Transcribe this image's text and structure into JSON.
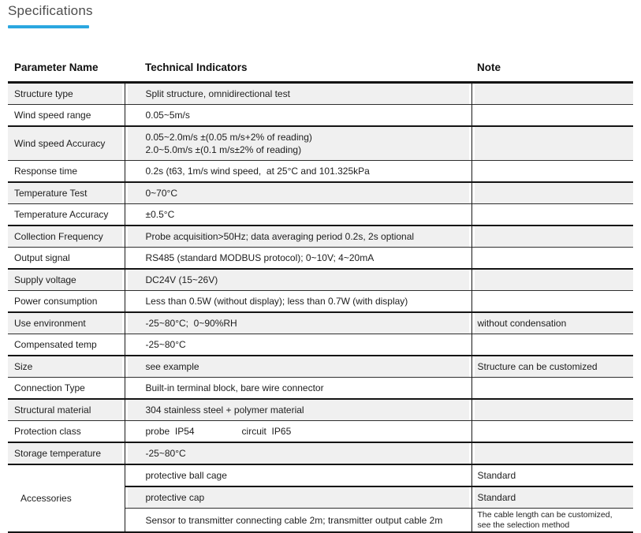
{
  "title": "Specifications",
  "accent_color": "#2BA7E0",
  "table": {
    "headers": [
      "Parameter Name",
      "Technical Indicators",
      "Note"
    ],
    "rows": [
      {
        "param": "Structure type",
        "value": "Split structure, omnidirectional test",
        "note": ""
      },
      {
        "param": "Wind speed range",
        "value": "0.05~5m/s",
        "note": ""
      },
      {
        "param": "Wind speed Accuracy",
        "value": "0.05~2.0m/s ±(0.05 m/s+2% of reading)\n2.0~5.0m/s ±(0.1 m/s±2% of reading)",
        "note": ""
      },
      {
        "param": "Response time",
        "value": "0.2s (t63, 1m/s wind speed,  at 25°C and 101.325kPa",
        "note": ""
      },
      {
        "param": "Temperature Test",
        "value": "0~70°C",
        "note": ""
      },
      {
        "param": "Temperature Accuracy",
        "value": "±0.5°C",
        "note": ""
      },
      {
        "param": "Collection Frequency",
        "value": "Probe acquisition>50Hz; data averaging period 0.2s, 2s optional",
        "note": ""
      },
      {
        "param": "Output signal",
        "value": "RS485 (standard MODBUS protocol); 0~10V; 4~20mA",
        "note": ""
      },
      {
        "param": "Supply voltage",
        "value": "DC24V (15~26V)",
        "note": ""
      },
      {
        "param": "Power consumption",
        "value": "Less than 0.5W (without display); less than 0.7W (with display)",
        "note": ""
      },
      {
        "param": "Use environment",
        "value": "-25~80°C;  0~90%RH",
        "note": "without condensation"
      },
      {
        "param": "Compensated temp",
        "value": "-25~80°C",
        "note": ""
      },
      {
        "param": "Size",
        "value": "see example",
        "note": "Structure can be customized"
      },
      {
        "param": "Connection Type",
        "value": "Built-in terminal block, bare wire connector",
        "note": ""
      },
      {
        "param": "Structural material",
        "value": "304 stainless steel + polymer material",
        "note": ""
      },
      {
        "param": "Protection class",
        "value": "probe  IP54                  circuit  IP65",
        "note": ""
      },
      {
        "param": "Storage temperature",
        "value": "-25~80°C",
        "note": ""
      }
    ],
    "accessories": {
      "param": "Accessories",
      "rows": [
        {
          "value": "protective ball cage",
          "note": "Standard",
          "note_small": false
        },
        {
          "value": "protective cap",
          "note": "Standard",
          "note_small": false
        },
        {
          "value": "Sensor to transmitter connecting cable 2m; transmitter output cable 2m",
          "note": "The cable length can be customized,\nsee the selection method",
          "note_small": true
        }
      ]
    }
  }
}
